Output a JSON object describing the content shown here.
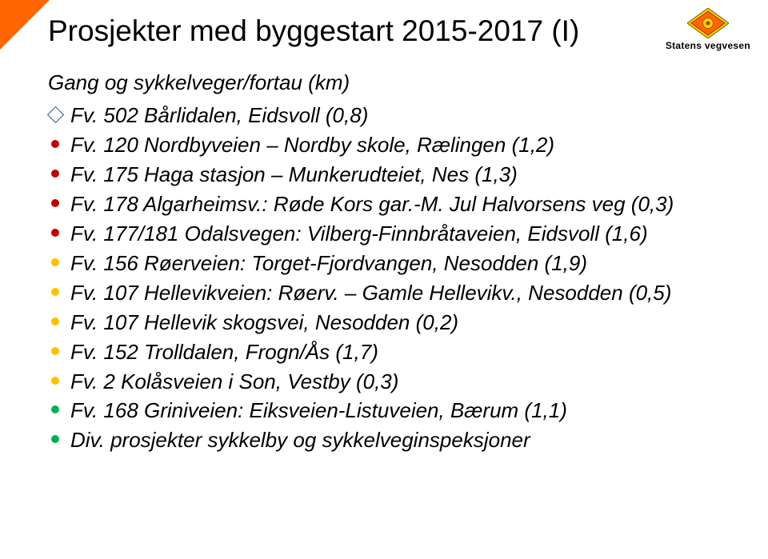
{
  "title": "Prosjekter med byggestart 2015-2017 (I)",
  "subtitle": "Gang og sykkelveger/fortau (km)",
  "logo_label": "Statens vegvesen",
  "corner_color": "#ff6600",
  "font_family": "Verdana, Geneva, sans-serif",
  "title_fontsize": 37,
  "item_fontsize": 26,
  "item_style": "italic",
  "background_color": "#ffffff",
  "text_color": "#000000",
  "diamond_border_color": "#2a568e",
  "items": [
    {
      "bullet": "diamond",
      "color": "#2a568e",
      "text": "Fv. 502 Bårlidalen, Eidsvoll (0,8)"
    },
    {
      "bullet": "dot",
      "color": "#c00000",
      "text": "Fv. 120 Nordbyveien – Nordby skole, Rælingen (1,2)"
    },
    {
      "bullet": "dot",
      "color": "#c00000",
      "text": "Fv. 175 Haga stasjon – Munkerudteiet, Nes (1,3)"
    },
    {
      "bullet": "dot",
      "color": "#c00000",
      "text": "Fv. 178 Algarheimsv.: Røde Kors gar.-M. Jul Halvorsens veg (0,3)"
    },
    {
      "bullet": "dot",
      "color": "#c00000",
      "text": "Fv. 177/181 Odalsvegen: Vilberg-Finnbråtaveien, Eidsvoll (1,6)"
    },
    {
      "bullet": "dot",
      "color": "#ffc000",
      "text": "Fv. 156 Røerveien: Torget-Fjordvangen, Nesodden (1,9)"
    },
    {
      "bullet": "dot",
      "color": "#ffc000",
      "text": "Fv. 107 Hellevikveien: Røerv. – Gamle Hellevikv., Nesodden (0,5)"
    },
    {
      "bullet": "dot",
      "color": "#ffc000",
      "text": "Fv. 107 Hellevik skogsvei, Nesodden (0,2)"
    },
    {
      "bullet": "dot",
      "color": "#ffc000",
      "text": "Fv. 152 Trolldalen, Frogn/Ås (1,7)"
    },
    {
      "bullet": "dot",
      "color": "#ffc000",
      "text": "Fv. 2 Kolåsveien i Son, Vestby (0,3)"
    },
    {
      "bullet": "dot",
      "color": "#00b050",
      "text": "Fv. 168 Griniveien: Eiksveien-Listuveien, Bærum (1,1)"
    },
    {
      "bullet": "dot",
      "color": "#00b050",
      "text": "Div. prosjekter sykkelby og sykkelveginspeksjoner"
    }
  ]
}
